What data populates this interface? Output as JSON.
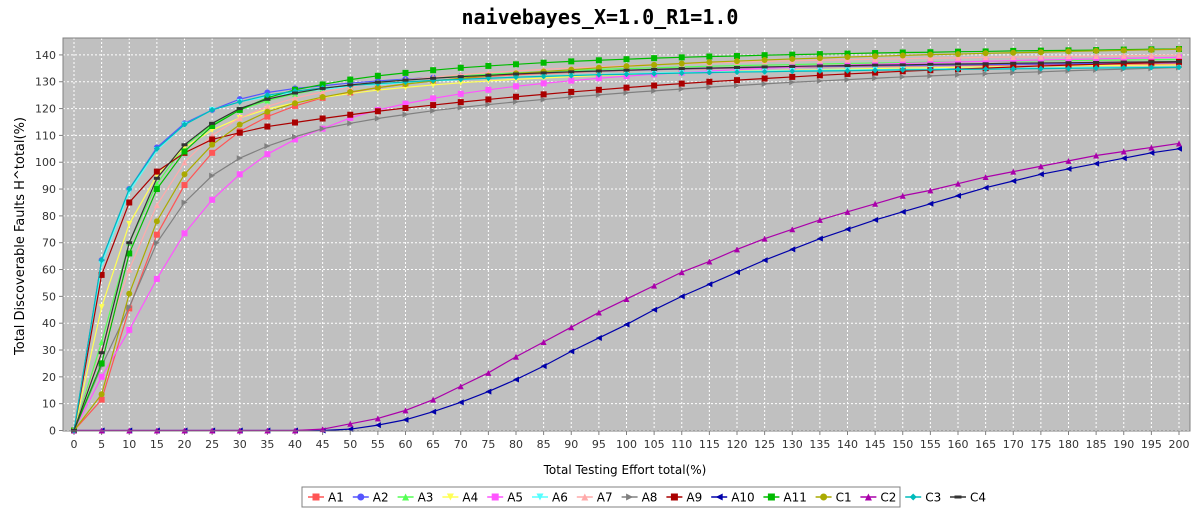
{
  "chart_data": {
    "type": "line",
    "title": "naivebayes_X=1.0_R1=1.0",
    "xlabel": "Total Testing Effort total(%)",
    "ylabel": "Total Discoverable Faults H^total(%)",
    "xlim": [
      0,
      200
    ],
    "ylim": [
      0,
      145
    ],
    "x_ticks": [
      0,
      5,
      10,
      15,
      20,
      25,
      30,
      35,
      40,
      45,
      50,
      55,
      60,
      65,
      70,
      75,
      80,
      85,
      90,
      95,
      100,
      105,
      110,
      115,
      120,
      125,
      130,
      135,
      140,
      145,
      150,
      155,
      160,
      165,
      170,
      175,
      180,
      185,
      190,
      195,
      200
    ],
    "y_ticks": [
      0,
      10,
      20,
      30,
      40,
      50,
      60,
      70,
      80,
      90,
      100,
      110,
      120,
      130,
      140
    ],
    "grid": true,
    "legend_position": "bottom",
    "background": "#c0c0c0",
    "series": [
      {
        "name": "A1",
        "color": "#ff5555",
        "marker": "square",
        "values": [
          0,
          11.5,
          45.5,
          73,
          91.5,
          103.5,
          111.5,
          117,
          121,
          124,
          126,
          127.8,
          129.2,
          130.3,
          131.2,
          132,
          132.6,
          133.1,
          133.5,
          133.9,
          134.2,
          134.5,
          134.7,
          134.9,
          135.1,
          135.3,
          135.4,
          135.6,
          135.7,
          135.8,
          135.9,
          136,
          136.1,
          136.2,
          136.3,
          136.4,
          136.4,
          136.5,
          136.6,
          136.6,
          136.7
        ]
      },
      {
        "name": "A2",
        "color": "#5555ff",
        "marker": "circle",
        "values": [
          0,
          63.5,
          90,
          105.5,
          114.5,
          119.5,
          123.5,
          126,
          127.5,
          128.5,
          129.5,
          130.3,
          131,
          131.6,
          132.1,
          132.6,
          133,
          133.4,
          133.7,
          134,
          134.3,
          134.5,
          134.8,
          135,
          135.2,
          135.4,
          135.5,
          135.7,
          135.8,
          136,
          136.1,
          136.2,
          136.3,
          136.4,
          136.5,
          136.6,
          136.7,
          136.8,
          136.9,
          137,
          137.1
        ]
      },
      {
        "name": "A3",
        "color": "#55ff55",
        "marker": "triangle-up",
        "values": [
          0,
          33,
          70,
          92,
          106,
          114,
          119.5,
          123,
          125.5,
          127.3,
          128.7,
          129.8,
          130.7,
          131.5,
          132.2,
          132.8,
          133.3,
          133.8,
          134.2,
          134.6,
          134.9,
          135.2,
          135.5,
          135.8,
          136,
          136.2,
          136.4,
          136.6,
          136.8,
          137,
          137.1,
          137.3,
          137.4,
          137.6,
          137.7,
          137.8,
          137.9,
          138,
          138.1,
          138.2,
          138.3
        ]
      },
      {
        "name": "A4",
        "color": "#ffff55",
        "marker": "triangle-down",
        "values": [
          0,
          46,
          77,
          95,
          105.5,
          112,
          116.5,
          119.8,
          122.2,
          124.1,
          125.6,
          126.9,
          127.9,
          128.8,
          129.6,
          130.3,
          130.9,
          131.4,
          131.9,
          132.3,
          132.7,
          133,
          133.3,
          133.6,
          133.9,
          134.1,
          134.3,
          134.5,
          134.7,
          134.9,
          135.1,
          135.2,
          135.4,
          135.5,
          135.6,
          135.8,
          135.9,
          136,
          136.1,
          136.2,
          136.3
        ]
      },
      {
        "name": "A5",
        "color": "#ff55ff",
        "marker": "square",
        "values": [
          0,
          20,
          37.5,
          56.5,
          73.5,
          86,
          95.5,
          103,
          108.5,
          112.5,
          116.5,
          119.5,
          121.8,
          123.8,
          125.5,
          127,
          128.3,
          129.4,
          130.4,
          131.3,
          132.1,
          132.8,
          133.4,
          134,
          134.5,
          135,
          135.4,
          135.8,
          136.2,
          136.5,
          136.8,
          137.1,
          137.4,
          137.6,
          137.9,
          138.1,
          138.3,
          138.5,
          138.7,
          138.9,
          139.1
        ]
      },
      {
        "name": "A6",
        "color": "#55ffff",
        "marker": "triangle-down",
        "values": [
          0,
          62,
          89,
          104.5,
          114,
          119.5,
          122.5,
          124.5,
          126,
          127.2,
          128.2,
          129,
          129.7,
          130.3,
          130.8,
          131.3,
          131.7,
          132.1,
          132.4,
          132.7,
          133,
          133.2,
          133.4,
          133.6,
          133.8,
          134,
          134.1,
          134.3,
          134.4,
          134.5,
          134.6,
          134.7,
          134.8,
          134.9,
          135,
          135.1,
          135.2,
          135.3,
          135.3,
          135.4,
          135.5
        ]
      },
      {
        "name": "A7",
        "color": "#ffaaaa",
        "marker": "triangle-up",
        "values": [
          0,
          30,
          60,
          84,
          100,
          110,
          116.5,
          120.8,
          123.9,
          126.2,
          128,
          129.5,
          130.7,
          131.7,
          132.6,
          133.4,
          134,
          134.6,
          135.1,
          135.6,
          136,
          136.4,
          136.7,
          137,
          137.3,
          137.6,
          137.8,
          138,
          138.2,
          138.4,
          138.6,
          138.8,
          138.9,
          139.1,
          139.2,
          139.3,
          139.5,
          139.6,
          139.7,
          139.8,
          139.9
        ]
      },
      {
        "name": "A8",
        "color": "#808080",
        "marker": "triangle-right",
        "values": [
          0,
          24,
          46,
          70,
          85,
          95,
          101.5,
          106,
          109.5,
          112.5,
          114.5,
          116.3,
          117.8,
          119.2,
          120.4,
          121.5,
          122.5,
          123.4,
          124.3,
          125.1,
          125.9,
          126.6,
          127.3,
          128,
          128.6,
          129.2,
          129.8,
          130.3,
          130.8,
          131.3,
          131.8,
          132.2,
          132.6,
          133,
          133.4,
          133.7,
          134.1,
          134.4,
          134.7,
          135,
          135.3
        ]
      },
      {
        "name": "A9",
        "color": "#aa0000",
        "marker": "square",
        "values": [
          0,
          58,
          85,
          96.5,
          103.5,
          108.5,
          111,
          113.3,
          114.8,
          116.3,
          117.7,
          119,
          120.2,
          121.3,
          122.4,
          123.4,
          124.4,
          125.3,
          126.2,
          127,
          127.8,
          128.6,
          129.3,
          130,
          130.6,
          131.2,
          131.8,
          132.4,
          132.9,
          133.4,
          133.9,
          134.3,
          134.7,
          135.1,
          135.5,
          135.9,
          136.2,
          136.5,
          136.8,
          137.1,
          137.4
        ]
      },
      {
        "name": "A10",
        "color": "#0000aa",
        "marker": "triangle-left",
        "values": [
          0,
          0,
          0,
          0,
          0,
          0,
          0,
          0,
          0,
          0,
          0.5,
          2,
          4,
          7,
          10.5,
          14.5,
          19,
          24,
          29.5,
          34.5,
          39.5,
          45,
          50,
          54.5,
          59,
          63.5,
          67.5,
          71.5,
          75,
          78.5,
          81.5,
          84.5,
          87.5,
          90.5,
          93,
          95.5,
          97.5,
          99.5,
          101.5,
          103.5,
          105
        ]
      },
      {
        "name": "A11",
        "color": "#00bb00",
        "marker": "square",
        "values": [
          0,
          25,
          66,
          90,
          104,
          113.5,
          119.5,
          124,
          127,
          129,
          130.8,
          132.2,
          133.3,
          134.3,
          135.2,
          135.9,
          136.5,
          137.1,
          137.6,
          138,
          138.4,
          138.8,
          139.1,
          139.4,
          139.6,
          139.9,
          140.1,
          140.3,
          140.5,
          140.7,
          140.9,
          141,
          141.2,
          141.3,
          141.5,
          141.6,
          141.7,
          141.8,
          142,
          142.1,
          142.2
        ]
      },
      {
        "name": "C1",
        "color": "#aaaa00",
        "marker": "circle",
        "values": [
          0,
          13.5,
          51,
          78,
          95.5,
          106.5,
          114,
          118.8,
          122,
          124.3,
          126.2,
          127.8,
          129.1,
          130.3,
          131.3,
          132.2,
          133.1,
          133.8,
          134.5,
          135.2,
          135.8,
          136.3,
          136.8,
          137.3,
          137.7,
          138.1,
          138.5,
          138.8,
          139.2,
          139.5,
          139.8,
          140.1,
          140.3,
          140.6,
          140.8,
          141,
          141.3,
          141.5,
          141.7,
          141.9,
          142.1
        ]
      },
      {
        "name": "C2",
        "color": "#aa00aa",
        "marker": "triangle-up",
        "values": [
          0,
          0,
          0,
          0,
          0,
          0,
          0,
          0,
          0,
          0.5,
          2.5,
          4.5,
          7.5,
          11.5,
          16.5,
          21.5,
          27.5,
          33,
          38.5,
          44,
          49,
          54,
          59,
          63,
          67.5,
          71.5,
          75,
          78.5,
          81.5,
          84.5,
          87.5,
          89.5,
          92,
          94.5,
          96.5,
          98.5,
          100.5,
          102.5,
          104,
          105.5,
          107
        ]
      },
      {
        "name": "C3",
        "color": "#00bbbb",
        "marker": "diamond",
        "values": [
          0,
          63.5,
          90,
          105,
          114,
          119.5,
          122.5,
          125,
          126.5,
          127.7,
          128.6,
          129.3,
          129.9,
          130.5,
          130.9,
          131.3,
          131.7,
          132,
          132.3,
          132.6,
          132.8,
          133,
          133.2,
          133.4,
          133.6,
          133.7,
          133.9,
          134,
          134.1,
          134.3,
          134.4,
          134.5,
          134.6,
          134.7,
          134.8,
          134.9,
          135,
          135.1,
          135.2,
          135.3,
          135.4
        ]
      },
      {
        "name": "C4",
        "color": "#333333",
        "marker": "dash",
        "values": [
          0,
          29,
          70,
          94,
          106.5,
          114.5,
          120,
          123.5,
          125.8,
          127.5,
          128.8,
          129.8,
          130.6,
          131.3,
          131.9,
          132.4,
          132.9,
          133.3,
          133.7,
          134,
          134.3,
          134.6,
          134.9,
          135.1,
          135.3,
          135.5,
          135.7,
          135.9,
          136,
          136.2,
          136.3,
          136.5,
          136.6,
          136.7,
          136.9,
          137,
          137.1,
          137.2,
          137.3,
          137.4,
          137.5
        ]
      }
    ]
  }
}
